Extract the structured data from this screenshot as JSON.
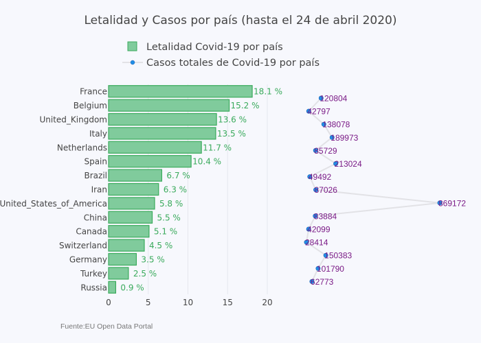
{
  "chart_data": {
    "title": "Letalidad y Casos por país (hasta el 24 de abril 2020)",
    "legend": {
      "placement": "top-center",
      "entries": [
        {
          "name": "Letalidad Covid-19 por país",
          "type": "bar"
        },
        {
          "name": "Casos totales de Covid-19 por país",
          "type": "line+markers"
        }
      ]
    },
    "source_note": "Fuente:EU Open Data Portal",
    "bar": {
      "type": "bar",
      "orientation": "horizontal",
      "series_name": "Letalidad Covid-19 por país",
      "categories": [
        "France",
        "Belgium",
        "United_Kingdom",
        "Italy",
        "Netherlands",
        "Spain",
        "Brazil",
        "Iran",
        "United_States_of_America",
        "China",
        "Canada",
        "Switzerland",
        "Germany",
        "Turkey",
        "Russia"
      ],
      "values": [
        18.1,
        15.2,
        13.6,
        13.5,
        11.7,
        10.4,
        6.7,
        6.3,
        5.8,
        5.5,
        5.1,
        4.5,
        3.5,
        2.5,
        0.9
      ],
      "value_labels": [
        "18.1 %",
        "15.2 %",
        "13.6 %",
        "13.5 %",
        "11.7 %",
        "10.4 %",
        "6.7 %",
        "6.3 %",
        "5.8 %",
        "5.5 %",
        "5.1 %",
        "4.5 %",
        "3.5 %",
        "2.5 %",
        "0.9 %"
      ],
      "xlim": [
        0,
        23
      ],
      "xticks": [
        0,
        5,
        10,
        15,
        20
      ],
      "grid": true
    },
    "line": {
      "type": "line",
      "series_name": "Casos totales de Covid-19 por país",
      "categories": [
        "France",
        "Belgium",
        "United_Kingdom",
        "Italy",
        "Netherlands",
        "Spain",
        "Brazil",
        "Iran",
        "United_States_of_America",
        "China",
        "Canada",
        "Switzerland",
        "Germany",
        "Turkey",
        "Russia"
      ],
      "values": [
        120804,
        42797,
        138078,
        189973,
        85729,
        213024,
        49492,
        87026,
        869172,
        83884,
        42099,
        28414,
        150383,
        101790,
        62773
      ],
      "axis_visible": false
    },
    "colors": {
      "bar_fill": "#80cb9c",
      "bar_edge": "#3aaa5c",
      "bar_label": "#3aaa5c",
      "line": "#e2e2e6",
      "marker": "#1f8fe6",
      "marker_edge": "#2a5fb0",
      "point_label": "#7a1a86"
    }
  }
}
